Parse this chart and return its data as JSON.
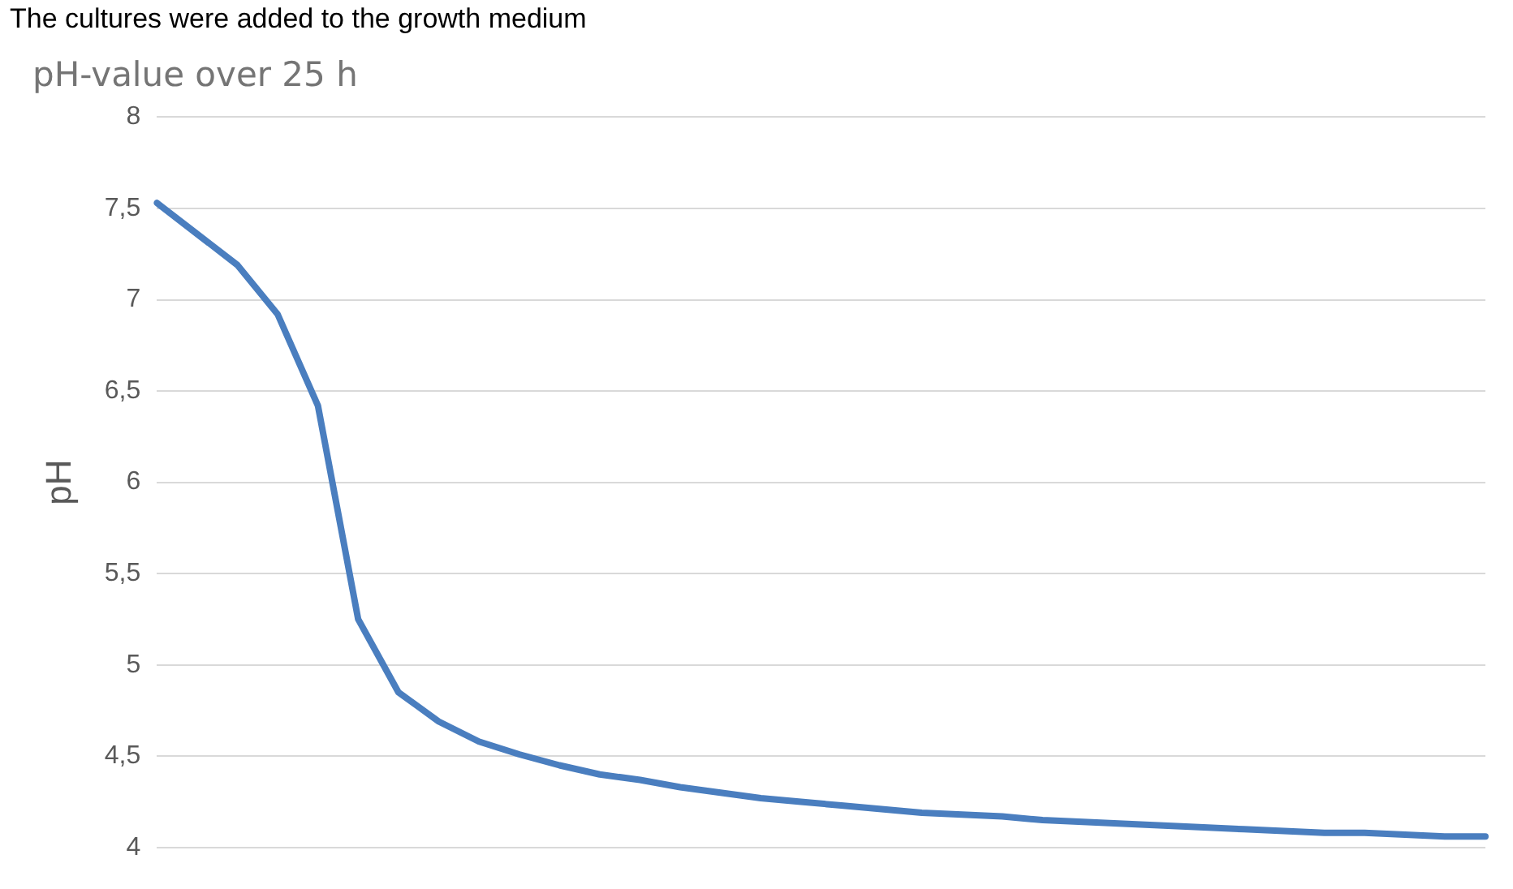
{
  "chart_data": {
    "type": "line",
    "title": "pH-value over 25 h",
    "ylabel": "pH",
    "annotations": [
      "The cultures were added to the growth medium"
    ],
    "categories": [
      null,
      null,
      null,
      null,
      null,
      null,
      null,
      null,
      null,
      null,
      null,
      null,
      null,
      null,
      null,
      null,
      null,
      null,
      null,
      null,
      null,
      null,
      null,
      null,
      null,
      null,
      null,
      null,
      null,
      null,
      null,
      null,
      null,
      null
    ],
    "series": [
      {
        "color": "#4a7ebf",
        "values": [
          7.53,
          7.36,
          7.19,
          6.92,
          6.42,
          5.25,
          4.85,
          4.69,
          4.58,
          4.51,
          4.45,
          4.4,
          4.37,
          4.33,
          4.3,
          4.27,
          4.25,
          4.23,
          4.21,
          4.19,
          4.18,
          4.17,
          4.15,
          4.14,
          4.13,
          4.12,
          4.11,
          4.1,
          4.09,
          4.08,
          4.08,
          4.07,
          4.06,
          4.06
        ]
      }
    ],
    "ylim": [
      4,
      8
    ],
    "yticks": [
      4,
      {
        "value": 4.5,
        "label": "4,5"
      },
      5,
      {
        "value": 5.5,
        "label": "5,5"
      },
      6,
      {
        "value": 6.5,
        "label": "6,5"
      },
      7,
      {
        "value": 7.5,
        "label": "7,5"
      },
      8
    ],
    "grid": "y",
    "legend": false,
    "marker": "none",
    "line_style": "solid",
    "tick_labels": "y"
  }
}
